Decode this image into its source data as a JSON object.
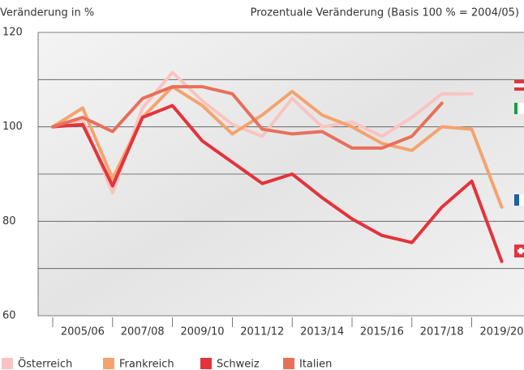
{
  "chart_data": {
    "type": "line",
    "y_label": "Veränderung in %",
    "subtitle": "Prozentuale Veränderung (Basis 100 % = 2004/05)",
    "categories": [
      null,
      "2005/06",
      null,
      "2007/08",
      null,
      "2009/10",
      null,
      "2011/12",
      null,
      "2013/14",
      null,
      "2015/16",
      null,
      "2017/18",
      null,
      "2019/20"
    ],
    "series": [
      {
        "name": "Österreich",
        "color": "#f9c4c0",
        "values": [
          100,
          101.5,
          86,
          104,
          111.5,
          105.5,
          100.5,
          98,
          106,
          100,
          101,
          98,
          102,
          107,
          107,
          null
        ]
      },
      {
        "name": "Frankreich",
        "color": "#f4a36e",
        "values": [
          100,
          104,
          89,
          102,
          108.5,
          104.5,
          98.5,
          102.5,
          107.5,
          102.5,
          100,
          96.5,
          95,
          100,
          99.5,
          83
        ]
      },
      {
        "name": "Schweiz",
        "color": "#e3333c",
        "values": [
          100,
          100.5,
          87.5,
          102,
          104.5,
          97,
          92.5,
          88,
          90,
          85,
          80.5,
          77,
          75.5,
          83,
          88.5,
          71.5
        ]
      },
      {
        "name": "Italien",
        "color": "#e8705a",
        "values": [
          100,
          102,
          99,
          106,
          108.5,
          108.5,
          107,
          99.5,
          98.5,
          99,
          95.5,
          95.5,
          98,
          105,
          null,
          null
        ]
      }
    ],
    "ylim": [
      60,
      120
    ],
    "yticks": [
      60,
      80,
      100,
      120
    ],
    "minor_yticks": [
      70,
      90,
      110
    ],
    "grid": true
  }
}
